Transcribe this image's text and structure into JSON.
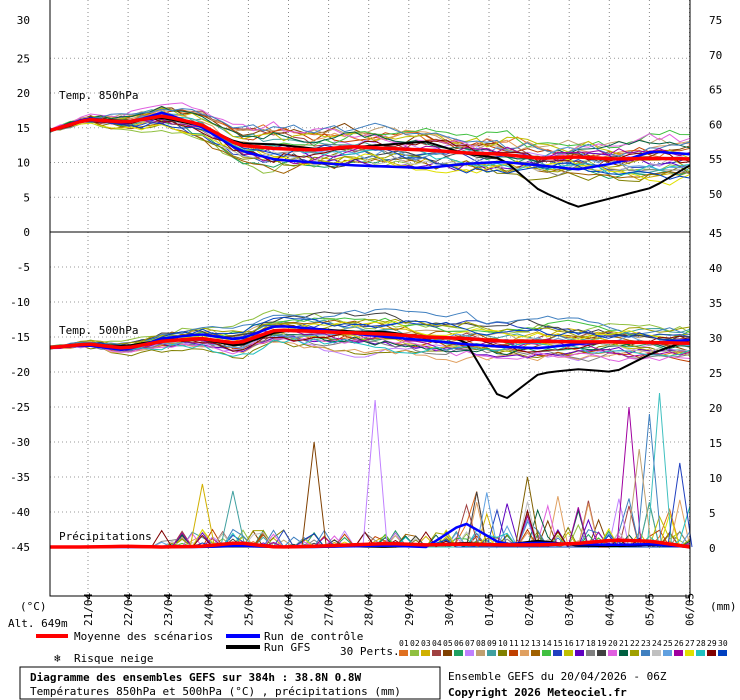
{
  "chart_data": {
    "type": "line",
    "title": "Diagramme des ensembles GEFS sur 384h : 38.8N 0.8W",
    "subtitle": "Températures 850hPa et 500hPa (°C) , précipitations (mm)",
    "run_info": "Ensemble GEFS du 20/04/2026 - 06Z",
    "copyright": "Copyright 2026 Meteociel.fr",
    "altitude": "Alt. 649m",
    "left_unit": "(°C)",
    "right_unit": "(mm)",
    "dates": [
      "21/04",
      "22/04",
      "23/04",
      "24/04",
      "25/04",
      "26/04",
      "27/04",
      "28/04",
      "29/04",
      "30/04",
      "01/05",
      "02/05",
      "03/05",
      "04/05",
      "05/05",
      "06/05"
    ],
    "left_ticks": [
      30,
      25,
      20,
      15,
      10,
      5,
      0,
      -5,
      -10,
      -15,
      -20,
      -25,
      -30,
      -35,
      -40,
      -45
    ],
    "right_ticks_top": [
      75,
      70,
      65,
      60,
      55,
      50
    ],
    "right_ticks_bottom": [
      45,
      40,
      35,
      30,
      25,
      20,
      15,
      10,
      5,
      0
    ],
    "panel_labels": {
      "t850": "Temp. 850hPa",
      "t500": "Temp. 500hPa",
      "precip": "Précipitations"
    },
    "legend": {
      "mean": "Moyenne des scénarios",
      "control": "Run de contrôle",
      "gfs": "Run GFS",
      "snow": "Risque neige",
      "perts": "30 Perts.",
      "mean_color": "#ff0000",
      "control_color": "#0000ff",
      "gfs_color": "#000000"
    },
    "pert_labels": [
      "01",
      "02",
      "03",
      "04",
      "05",
      "06",
      "07",
      "08",
      "09",
      "10",
      "11",
      "12",
      "13",
      "14",
      "15",
      "16",
      "17",
      "18",
      "19",
      "20",
      "21",
      "22",
      "23",
      "24",
      "25",
      "26",
      "27",
      "28",
      "29",
      "30"
    ],
    "pert_colors": [
      "#e07020",
      "#90c040",
      "#d0b000",
      "#a04040",
      "#804000",
      "#20a060",
      "#c080ff",
      "#c0a070",
      "#40a0a0",
      "#808000",
      "#c04000",
      "#e0a060",
      "#a06000",
      "#40c040",
      "#2040c0",
      "#c0c000",
      "#6000c0",
      "#808080",
      "#404040",
      "#e060e0",
      "#006040",
      "#a0a000",
      "#4080c0",
      "#c0c0c0",
      "#60a0e0",
      "#a000a0",
      "#e0e000",
      "#20c0c0",
      "#800000",
      "#0040c0"
    ],
    "t850": {
      "mean": [
        14.6,
        16.2,
        15.8,
        16.7,
        15.5,
        12.5,
        12.0,
        11.8,
        12.3,
        12.0,
        11.8,
        11.4,
        11.2,
        10.6,
        10.8,
        10.5,
        10.6,
        10.5
      ],
      "control": [
        14.6,
        16.4,
        15.6,
        17.2,
        15.2,
        11.8,
        10.4,
        10.0,
        9.6,
        9.4,
        9.2,
        9.8,
        10.1,
        9.6,
        9.0,
        9.9,
        11.6,
        11.2
      ],
      "gfs": [
        14.6,
        16.3,
        16.0,
        16.4,
        15.3,
        12.8,
        12.6,
        12.0,
        12.2,
        12.6,
        13.0,
        11.3,
        10.6,
        6.0,
        3.6,
        5.0,
        6.4,
        9.6
      ]
    },
    "t500": {
      "mean": [
        -16.5,
        -16.0,
        -16.6,
        -15.6,
        -15.2,
        -15.9,
        -14.0,
        -14.2,
        -14.4,
        -14.6,
        -15.0,
        -15.2,
        -15.6,
        -15.6,
        -15.7,
        -15.7,
        -15.8,
        -15.9
      ],
      "control": [
        -16.5,
        -16.2,
        -16.9,
        -15.2,
        -14.6,
        -15.4,
        -13.4,
        -13.8,
        -14.5,
        -15.0,
        -15.5,
        -16.0,
        -16.4,
        -16.6,
        -16.0,
        -15.6,
        -15.8,
        -15.4
      ],
      "gfs": [
        -16.5,
        -16.1,
        -16.3,
        -15.4,
        -15.3,
        -16.3,
        -14.3,
        -13.8,
        -14.2,
        -14.3,
        -15.1,
        -15.3,
        -24.3,
        -20.2,
        -19.6,
        -20.0,
        -17.3,
        -15.4
      ]
    },
    "precip": {
      "mean": [
        0.0,
        0.0,
        0.1,
        0.0,
        0.1,
        0.6,
        0.0,
        0.1,
        0.3,
        0.5,
        0.3,
        0.4,
        0.3,
        0.3,
        0.5,
        1.0,
        0.8,
        0.0
      ],
      "control": [
        0.0,
        0.0,
        0.0,
        0.0,
        0.0,
        0.2,
        0.0,
        0.0,
        0.1,
        0.2,
        0.0,
        3.5,
        0.4,
        0.6,
        0.4,
        0.3,
        0.4,
        0.0
      ],
      "gfs": [
        0.0,
        0.0,
        0.0,
        0.0,
        0.0,
        0.1,
        0.0,
        0.0,
        0.1,
        0.0,
        0.3,
        0.6,
        0.3,
        0.9,
        0.2,
        0.1,
        0.3,
        0.0
      ]
    }
  }
}
